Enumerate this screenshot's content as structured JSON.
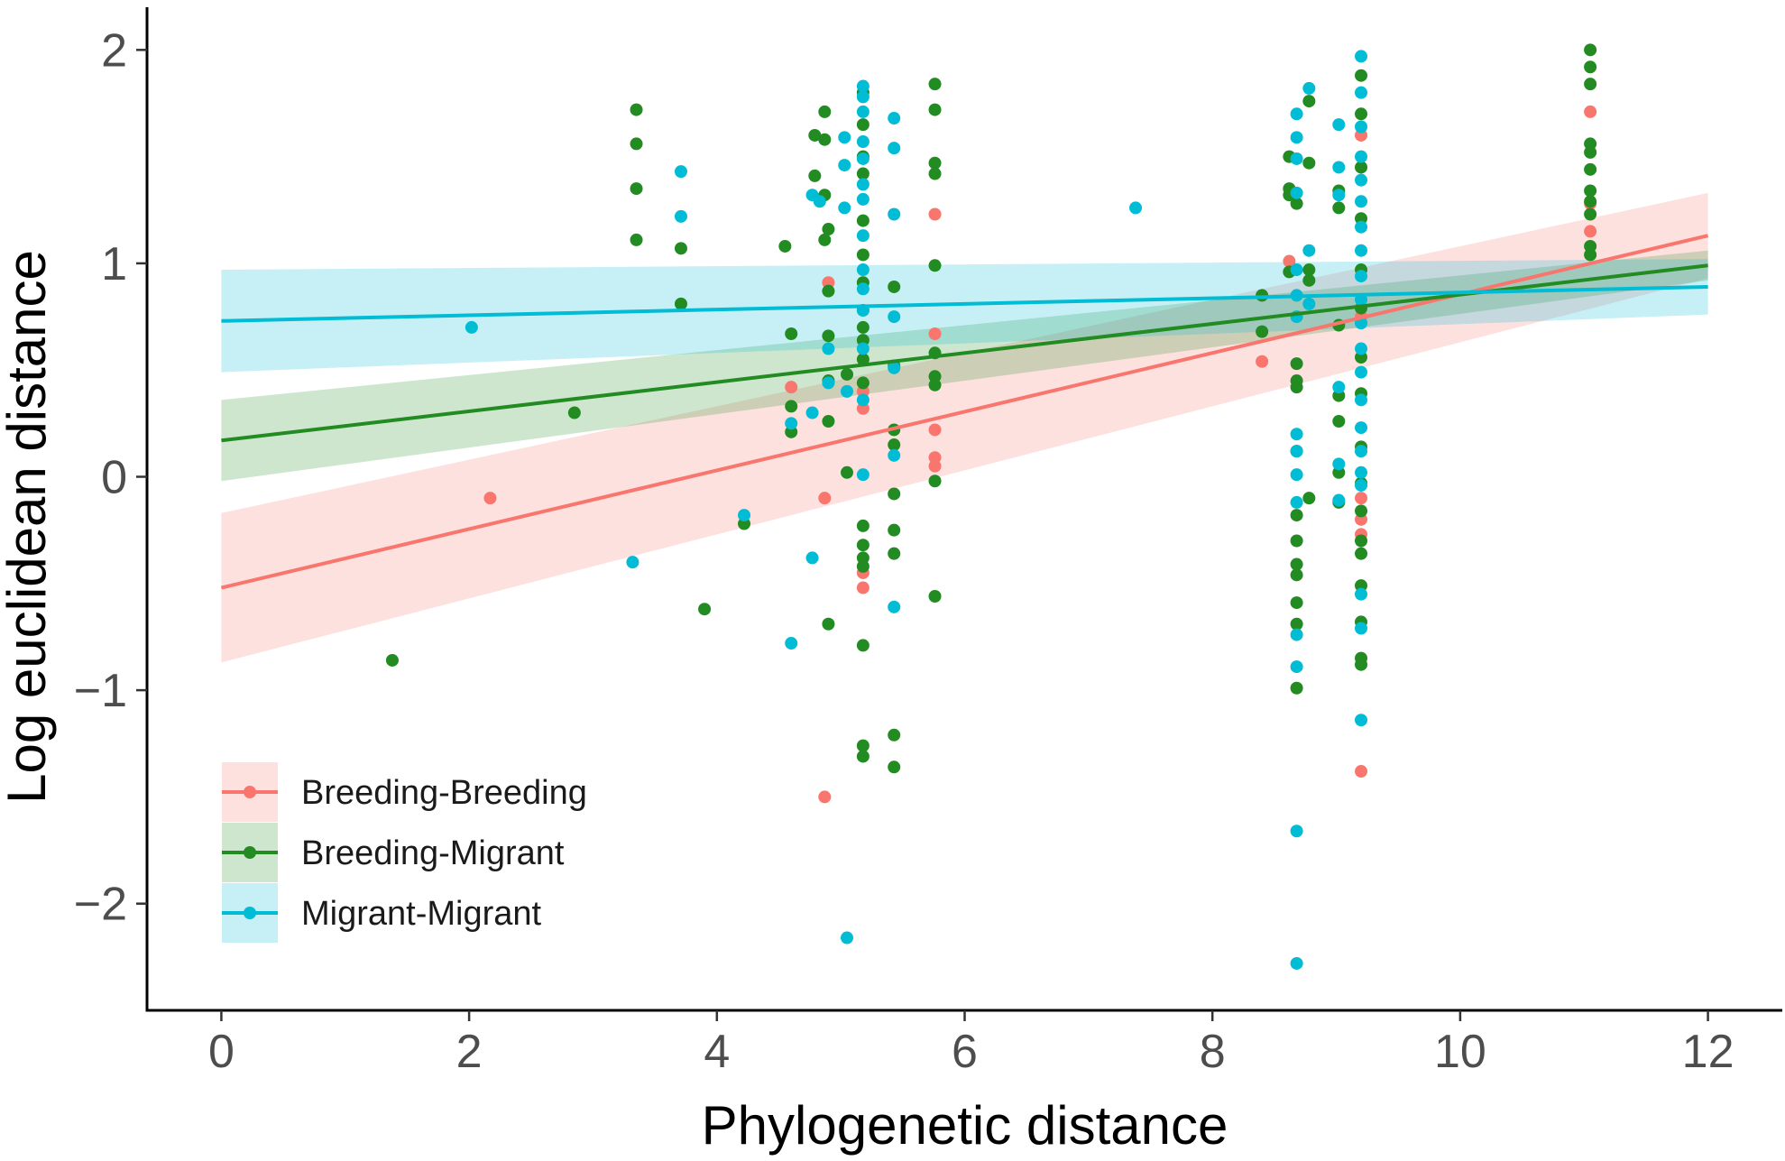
{
  "chart_data": {
    "type": "scatter",
    "title": "",
    "xlabel": "Phylogenetic distance",
    "ylabel": "Log euclidean distance",
    "xlim": [
      -0.6,
      12.6
    ],
    "ylim": [
      -2.5,
      2.2
    ],
    "xticks": [
      0,
      2,
      4,
      6,
      8,
      10,
      12
    ],
    "yticks": [
      2,
      1,
      0,
      -1,
      -2
    ],
    "ytick_labels": [
      "2",
      "1",
      "0",
      "−1",
      "−2"
    ],
    "grid": false,
    "legend_position": "bottom-left",
    "series": [
      {
        "name": "Breeding-Breeding",
        "color": "#F8766D",
        "fit": {
          "x": [
            0,
            12
          ],
          "y": [
            -0.52,
            1.13
          ]
        },
        "band_lower": [
          -0.87,
          0.93
        ],
        "band_upper": [
          -0.17,
          1.33
        ],
        "points": [
          [
            2.17,
            -0.1
          ],
          [
            4.6,
            0.42
          ],
          [
            4.87,
            -0.1
          ],
          [
            4.87,
            -1.5
          ],
          [
            4.9,
            0.91
          ],
          [
            5.18,
            0.32
          ],
          [
            5.18,
            -0.45
          ],
          [
            5.18,
            -0.52
          ],
          [
            5.18,
            0.4
          ],
          [
            5.76,
            1.23
          ],
          [
            5.76,
            0.67
          ],
          [
            5.76,
            0.22
          ],
          [
            5.76,
            0.09
          ],
          [
            5.76,
            0.05
          ],
          [
            8.4,
            0.54
          ],
          [
            8.62,
            1.01
          ],
          [
            9.2,
            1.6
          ],
          [
            9.2,
            0.75
          ],
          [
            9.2,
            -0.1
          ],
          [
            9.2,
            -0.2
          ],
          [
            9.2,
            -0.27
          ],
          [
            9.2,
            -1.38
          ],
          [
            11.05,
            1.71
          ],
          [
            11.05,
            1.28
          ],
          [
            11.05,
            1.15
          ]
        ]
      },
      {
        "name": "Breeding-Migrant",
        "color": "#228B22",
        "fit": {
          "x": [
            0,
            12
          ],
          "y": [
            0.17,
            0.99
          ]
        },
        "band_lower": [
          -0.02,
          0.92
        ],
        "band_upper": [
          0.36,
          1.06
        ],
        "points": [
          [
            1.38,
            -0.86
          ],
          [
            2.85,
            0.3
          ],
          [
            3.35,
            1.72
          ],
          [
            3.35,
            1.56
          ],
          [
            3.35,
            1.35
          ],
          [
            3.35,
            1.11
          ],
          [
            3.71,
            1.07
          ],
          [
            3.71,
            0.81
          ],
          [
            3.9,
            -0.62
          ],
          [
            4.22,
            -0.22
          ],
          [
            4.55,
            1.08
          ],
          [
            4.6,
            0.67
          ],
          [
            4.6,
            0.33
          ],
          [
            4.6,
            0.21
          ],
          [
            4.79,
            1.6
          ],
          [
            4.79,
            1.41
          ],
          [
            4.87,
            1.71
          ],
          [
            4.87,
            1.58
          ],
          [
            4.87,
            1.32
          ],
          [
            4.87,
            1.11
          ],
          [
            4.9,
            1.16
          ],
          [
            4.9,
            0.87
          ],
          [
            4.9,
            0.66
          ],
          [
            4.9,
            0.45
          ],
          [
            4.9,
            0.26
          ],
          [
            4.9,
            -0.69
          ],
          [
            5.05,
            0.48
          ],
          [
            5.05,
            0.02
          ],
          [
            5.18,
            1.8
          ],
          [
            5.18,
            1.65
          ],
          [
            5.18,
            1.5
          ],
          [
            5.18,
            1.42
          ],
          [
            5.18,
            1.2
          ],
          [
            5.18,
            1.04
          ],
          [
            5.18,
            0.91
          ],
          [
            5.18,
            0.78
          ],
          [
            5.18,
            0.7
          ],
          [
            5.18,
            0.64
          ],
          [
            5.18,
            0.55
          ],
          [
            5.18,
            0.44
          ],
          [
            5.18,
            -0.23
          ],
          [
            5.18,
            -0.32
          ],
          [
            5.18,
            -0.38
          ],
          [
            5.18,
            -0.42
          ],
          [
            5.18,
            -0.79
          ],
          [
            5.18,
            -1.26
          ],
          [
            5.18,
            -1.31
          ],
          [
            5.43,
            0.89
          ],
          [
            5.43,
            0.52
          ],
          [
            5.43,
            0.22
          ],
          [
            5.43,
            0.15
          ],
          [
            5.43,
            -0.08
          ],
          [
            5.43,
            -0.25
          ],
          [
            5.43,
            -0.36
          ],
          [
            5.43,
            -1.21
          ],
          [
            5.43,
            -1.36
          ],
          [
            5.76,
            1.84
          ],
          [
            5.76,
            1.72
          ],
          [
            5.76,
            1.47
          ],
          [
            5.76,
            1.42
          ],
          [
            5.76,
            0.99
          ],
          [
            5.76,
            0.58
          ],
          [
            5.76,
            0.47
          ],
          [
            5.76,
            0.43
          ],
          [
            5.76,
            -0.02
          ],
          [
            5.76,
            -0.56
          ],
          [
            8.4,
            0.85
          ],
          [
            8.4,
            0.68
          ],
          [
            8.62,
            1.5
          ],
          [
            8.62,
            1.35
          ],
          [
            8.62,
            1.32
          ],
          [
            8.62,
            0.96
          ],
          [
            8.68,
            1.28
          ],
          [
            8.68,
            0.53
          ],
          [
            8.68,
            0.45
          ],
          [
            8.68,
            0.42
          ],
          [
            8.68,
            0.12
          ],
          [
            8.68,
            -0.18
          ],
          [
            8.68,
            -0.3
          ],
          [
            8.68,
            -0.41
          ],
          [
            8.68,
            -0.46
          ],
          [
            8.68,
            -0.59
          ],
          [
            8.68,
            -0.69
          ],
          [
            8.68,
            -0.99
          ],
          [
            8.78,
            1.76
          ],
          [
            8.78,
            1.47
          ],
          [
            8.78,
            0.97
          ],
          [
            8.78,
            0.92
          ],
          [
            8.78,
            -0.1
          ],
          [
            9.02,
            1.34
          ],
          [
            9.02,
            1.26
          ],
          [
            9.02,
            0.71
          ],
          [
            9.02,
            0.38
          ],
          [
            9.02,
            0.26
          ],
          [
            9.02,
            0.02
          ],
          [
            9.02,
            -0.12
          ],
          [
            9.2,
            1.88
          ],
          [
            9.2,
            1.7
          ],
          [
            9.2,
            1.45
          ],
          [
            9.2,
            1.21
          ],
          [
            9.2,
            0.97
          ],
          [
            9.2,
            0.79
          ],
          [
            9.2,
            0.56
          ],
          [
            9.2,
            0.39
          ],
          [
            9.2,
            0.14
          ],
          [
            9.2,
            -0.03
          ],
          [
            9.2,
            -0.16
          ],
          [
            9.2,
            -0.3
          ],
          [
            9.2,
            -0.36
          ],
          [
            9.2,
            -0.51
          ],
          [
            9.2,
            -0.68
          ],
          [
            9.2,
            -0.85
          ],
          [
            9.2,
            -0.88
          ],
          [
            11.05,
            2.0
          ],
          [
            11.05,
            1.92
          ],
          [
            11.05,
            1.84
          ],
          [
            11.05,
            1.56
          ],
          [
            11.05,
            1.52
          ],
          [
            11.05,
            1.44
          ],
          [
            11.05,
            1.34
          ],
          [
            11.05,
            1.29
          ],
          [
            11.05,
            1.23
          ],
          [
            11.05,
            1.08
          ],
          [
            11.05,
            1.04
          ]
        ]
      },
      {
        "name": "Migrant-Migrant",
        "color": "#00BCD4",
        "fit": {
          "x": [
            0,
            12
          ],
          "y": [
            0.73,
            0.89
          ]
        },
        "band_lower": [
          0.49,
          0.76
        ],
        "band_upper": [
          0.97,
          1.02
        ],
        "points": [
          [
            2.02,
            0.7
          ],
          [
            3.32,
            -0.4
          ],
          [
            3.71,
            1.43
          ],
          [
            3.71,
            1.22
          ],
          [
            4.22,
            -0.18
          ],
          [
            4.6,
            -0.78
          ],
          [
            4.6,
            0.25
          ],
          [
            4.77,
            1.32
          ],
          [
            4.77,
            -0.38
          ],
          [
            4.77,
            0.3
          ],
          [
            4.83,
            1.29
          ],
          [
            4.9,
            0.6
          ],
          [
            4.9,
            0.44
          ],
          [
            5.03,
            1.59
          ],
          [
            5.03,
            1.46
          ],
          [
            5.03,
            1.26
          ],
          [
            5.05,
            0.4
          ],
          [
            5.05,
            -2.16
          ],
          [
            5.18,
            1.83
          ],
          [
            5.18,
            1.78
          ],
          [
            5.18,
            1.71
          ],
          [
            5.18,
            1.57
          ],
          [
            5.18,
            1.49
          ],
          [
            5.18,
            1.37
          ],
          [
            5.18,
            1.3
          ],
          [
            5.18,
            1.13
          ],
          [
            5.18,
            0.97
          ],
          [
            5.18,
            0.88
          ],
          [
            5.18,
            0.78
          ],
          [
            5.18,
            0.6
          ],
          [
            5.18,
            0.36
          ],
          [
            5.18,
            0.01
          ],
          [
            5.43,
            1.68
          ],
          [
            5.43,
            1.54
          ],
          [
            5.43,
            1.23
          ],
          [
            5.43,
            0.75
          ],
          [
            5.43,
            0.51
          ],
          [
            5.43,
            0.1
          ],
          [
            5.43,
            -0.61
          ],
          [
            7.38,
            1.26
          ],
          [
            8.68,
            1.7
          ],
          [
            8.68,
            1.59
          ],
          [
            8.68,
            1.49
          ],
          [
            8.68,
            1.33
          ],
          [
            8.68,
            0.97
          ],
          [
            8.68,
            0.85
          ],
          [
            8.68,
            0.75
          ],
          [
            8.68,
            0.2
          ],
          [
            8.68,
            0.12
          ],
          [
            8.68,
            0.01
          ],
          [
            8.68,
            -0.12
          ],
          [
            8.68,
            -0.74
          ],
          [
            8.68,
            -0.89
          ],
          [
            8.68,
            -1.66
          ],
          [
            8.68,
            -2.28
          ],
          [
            8.78,
            1.82
          ],
          [
            8.78,
            1.06
          ],
          [
            8.78,
            0.81
          ],
          [
            9.02,
            1.65
          ],
          [
            9.02,
            1.45
          ],
          [
            9.02,
            1.32
          ],
          [
            9.02,
            0.42
          ],
          [
            9.02,
            0.06
          ],
          [
            9.02,
            -0.11
          ],
          [
            9.2,
            1.97
          ],
          [
            9.2,
            1.8
          ],
          [
            9.2,
            1.64
          ],
          [
            9.2,
            1.5
          ],
          [
            9.2,
            1.39
          ],
          [
            9.2,
            1.29
          ],
          [
            9.2,
            1.17
          ],
          [
            9.2,
            1.06
          ],
          [
            9.2,
            0.94
          ],
          [
            9.2,
            0.83
          ],
          [
            9.2,
            0.72
          ],
          [
            9.2,
            0.6
          ],
          [
            9.2,
            0.49
          ],
          [
            9.2,
            0.36
          ],
          [
            9.2,
            0.23
          ],
          [
            9.2,
            0.12
          ],
          [
            9.2,
            0.02
          ],
          [
            9.2,
            -0.04
          ],
          [
            9.2,
            -0.55
          ],
          [
            9.2,
            -0.71
          ],
          [
            9.2,
            -1.14
          ]
        ]
      }
    ]
  }
}
